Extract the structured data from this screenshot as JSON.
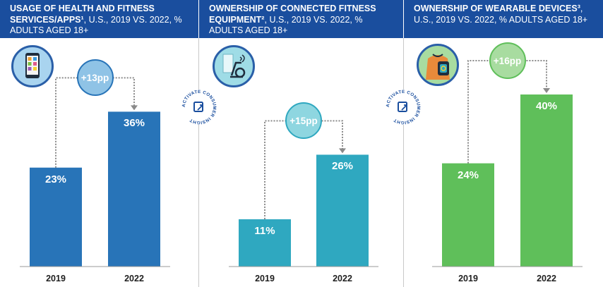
{
  "colors": {
    "header_bg": "#1a4e9e",
    "panel1_bar": "#2874b8",
    "panel2_bar": "#2fa8c0",
    "panel3_bar": "#5fbf5a",
    "panel1_bubble": "#8fc3e6",
    "panel2_bubble": "#8ed6e0",
    "panel3_bubble": "#a8dca0"
  },
  "seal_text": "ACTIVATE CONSUMER INSIGHT",
  "chart_data": [
    {
      "type": "bar",
      "title": "USAGE OF HEALTH AND FITNESS SERVICES/APPS¹",
      "subtitle": "U.S., 2019 VS. 2022, % ADULTS AGED 18+",
      "icon": "smartphone-apps-icon",
      "categories": [
        "2019",
        "2022"
      ],
      "values": [
        23,
        36
      ],
      "value_labels": [
        "23%",
        "36%"
      ],
      "change_label": "+13pp",
      "ylim": [
        0,
        40
      ]
    },
    {
      "type": "bar",
      "title": "OWNERSHIP OF CONNECTED FITNESS EQUIPMENT²",
      "subtitle": "U.S., 2019 VS. 2022, % ADULTS AGED 18+",
      "icon": "exercise-bike-icon",
      "categories": [
        "2019",
        "2022"
      ],
      "values": [
        11,
        26
      ],
      "value_labels": [
        "11%",
        "26%"
      ],
      "change_label": "+15pp",
      "ylim": [
        0,
        40
      ]
    },
    {
      "type": "bar",
      "title": "OWNERSHIP OF WEARABLE DEVICES³",
      "subtitle": "U.S., 2019 VS. 2022, % ADULTS AGED 18+",
      "icon": "smartwatch-icon",
      "categories": [
        "2019",
        "2022"
      ],
      "values": [
        24,
        40
      ],
      "value_labels": [
        "24%",
        "40%"
      ],
      "change_label": "+16pp",
      "ylim": [
        0,
        40
      ]
    }
  ]
}
